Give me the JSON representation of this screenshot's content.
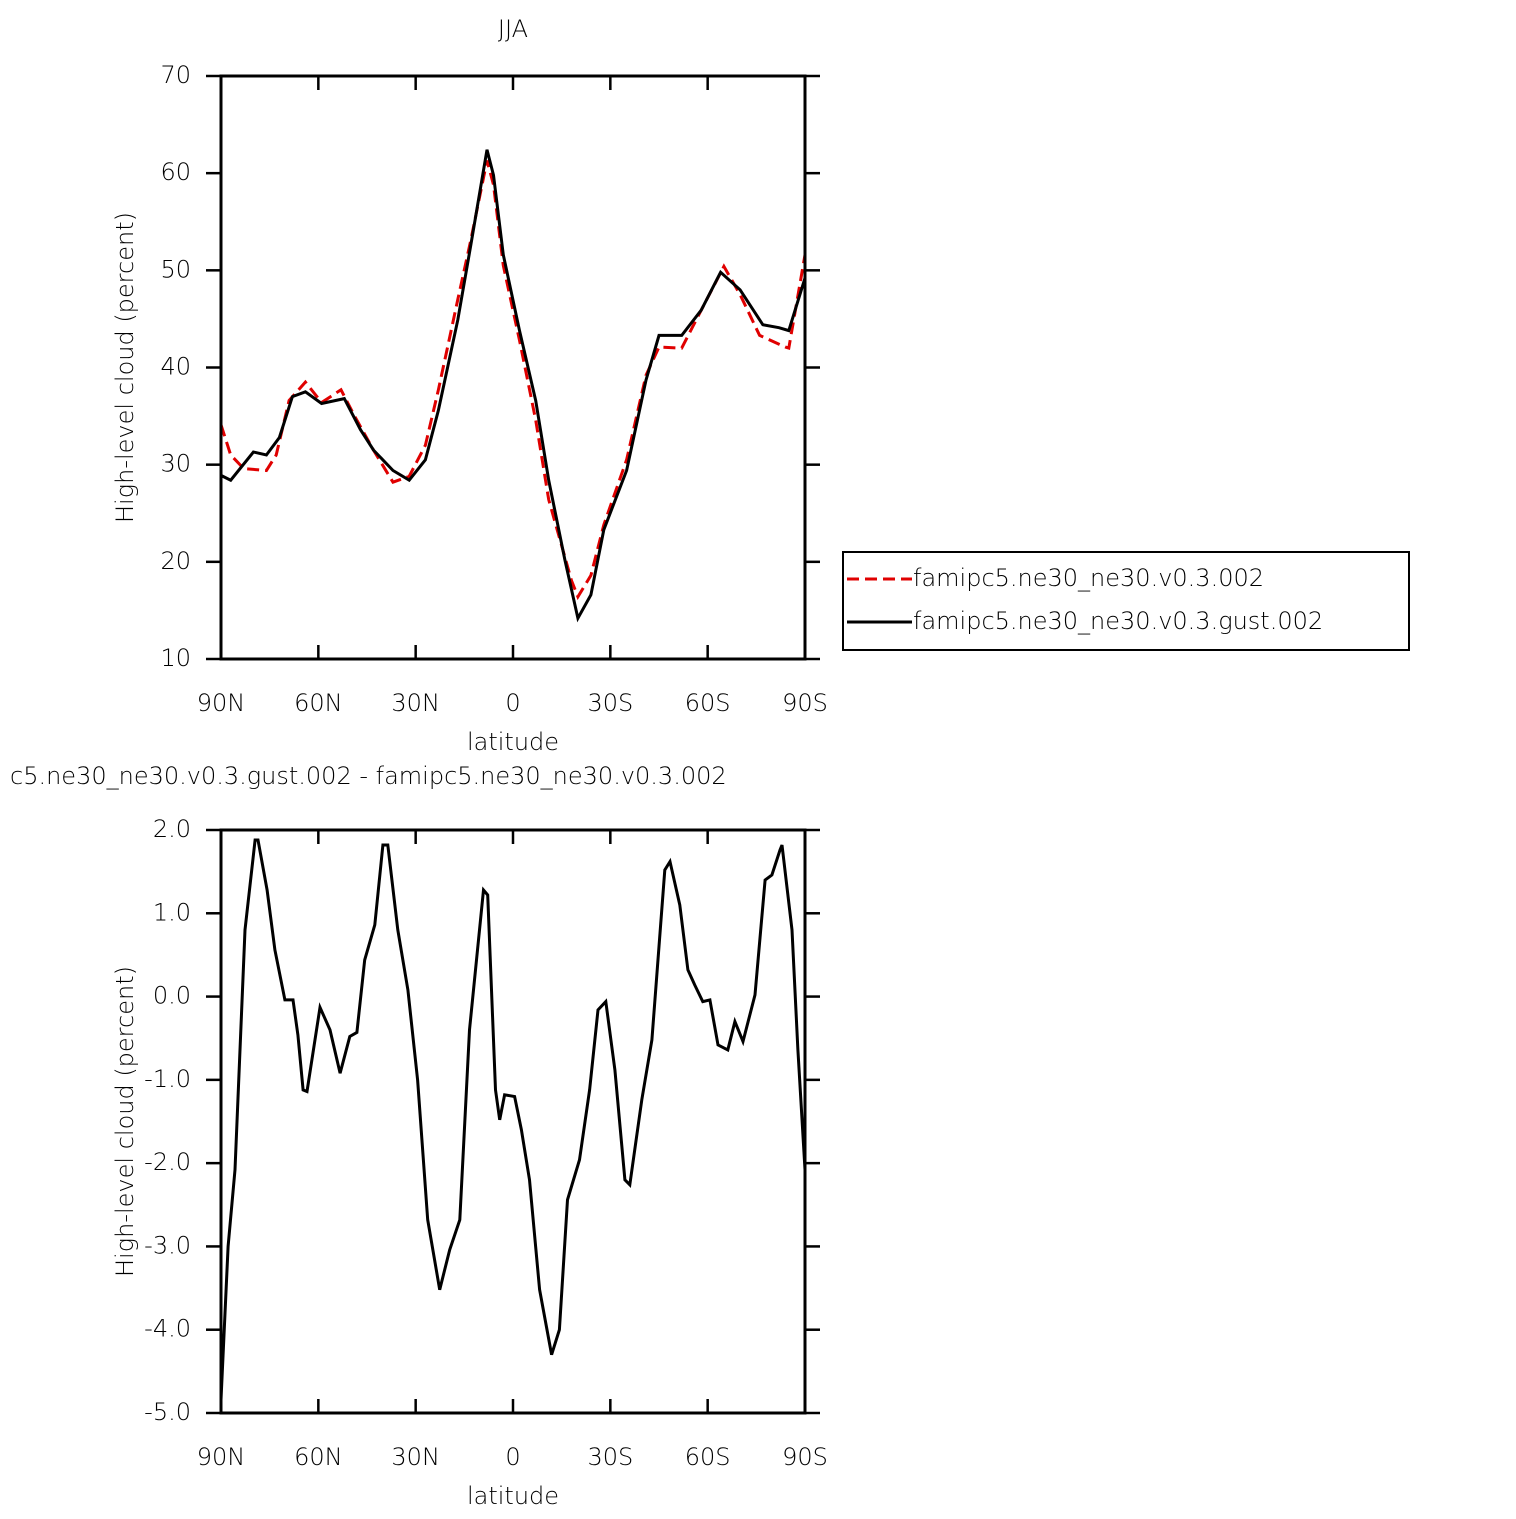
{
  "chart_data": [
    {
      "type": "line",
      "title": "JJA",
      "x_label": "latitude",
      "y_label": "High-level cloud (percent)",
      "xlim": [
        90,
        -90
      ],
      "xticks": [
        {
          "value": 90,
          "label": "90N"
        },
        {
          "value": 60,
          "label": "60N"
        },
        {
          "value": 30,
          "label": "30N"
        },
        0,
        {
          "value": -30,
          "label": "30S"
        },
        {
          "value": -60,
          "label": "60S"
        },
        {
          "value": -90,
          "label": "90S"
        }
      ],
      "ylim": [
        10,
        70
      ],
      "yticks": [
        10,
        20,
        30,
        40,
        50,
        60,
        70
      ],
      "legend": "right",
      "series": [
        {
          "name": "famipc5.ne30_ne30.v0.3.002",
          "color": "#e00000",
          "line_style": "dashed",
          "x": [
            90,
            87,
            83,
            76,
            73,
            69,
            64,
            59,
            53,
            49,
            43,
            37,
            32,
            27,
            23,
            17,
            13,
            8,
            6,
            3,
            -2,
            -7,
            -11,
            -18,
            -20,
            -24,
            -28,
            -35,
            -41,
            -45,
            -52,
            -58,
            -65,
            -70,
            -76,
            -84,
            -85,
            -90
          ],
          "values": [
            34.1,
            31,
            29.6,
            29.4,
            31,
            36.6,
            38.5,
            36.4,
            37.7,
            35.1,
            31.5,
            28.2,
            28.8,
            32,
            37.7,
            47,
            53.1,
            61.3,
            58.8,
            50.5,
            42.8,
            34.6,
            26.4,
            18.1,
            16.4,
            18.6,
            23.8,
            30.5,
            39.2,
            42.1,
            42,
            45.9,
            50.4,
            47.5,
            43.3,
            42.1,
            42,
            51.6
          ]
        },
        {
          "name": "famipc5.ne30_ne30.v0.3.gust.002",
          "color": "#000000",
          "line_style": "solid",
          "x": [
            90,
            87,
            80,
            76,
            72,
            68,
            64,
            59,
            52,
            47,
            43,
            37,
            32,
            27,
            23,
            17,
            13,
            8,
            6,
            3,
            -2,
            -7,
            -11,
            -16,
            -20,
            -24,
            -28,
            -35,
            -41,
            -45,
            -52,
            -58,
            -64,
            -70,
            -77,
            -82,
            -85,
            -90
          ],
          "values": [
            28.9,
            28.4,
            31.3,
            31,
            32.8,
            37,
            37.5,
            36.3,
            36.8,
            33.6,
            31.5,
            29.4,
            28.4,
            30.5,
            35.6,
            44.9,
            52.6,
            62.4,
            59.8,
            51.6,
            43.8,
            36.6,
            28.4,
            20.2,
            14.2,
            16.6,
            23.3,
            29.4,
            38.7,
            43.3,
            43.3,
            45.9,
            49.8,
            48,
            44.4,
            44.1,
            43.8,
            49.2
          ]
        }
      ]
    },
    {
      "type": "line",
      "title": "c5.ne30_ne30.v0.3.gust.002 - famipc5.ne30_ne30.v0.3.002",
      "x_label": "latitude",
      "y_label": "High-level cloud (percent)",
      "xlim": [
        90,
        -90
      ],
      "xticks": [
        {
          "value": 90,
          "label": "90N"
        },
        {
          "value": 60,
          "label": "60N"
        },
        {
          "value": 30,
          "label": "30N"
        },
        0,
        {
          "value": -30,
          "label": "30S"
        },
        {
          "value": -60,
          "label": "60S"
        },
        {
          "value": -90,
          "label": "90S"
        }
      ],
      "ylim": [
        -5,
        2
      ],
      "yticks": [
        {
          "value": -5,
          "label": "-5.0"
        },
        {
          "value": -4,
          "label": "-4.0"
        },
        {
          "value": -3,
          "label": "-3.0"
        },
        {
          "value": -2,
          "label": "-2.0"
        },
        {
          "value": -1,
          "label": "-1.0"
        },
        {
          "value": 0,
          "label": "0.0"
        },
        {
          "value": 1,
          "label": "1.0"
        },
        {
          "value": 2,
          "label": "2.0"
        }
      ],
      "series": [
        {
          "color": "#000000",
          "line_style": "solid",
          "x": [
            90,
            87.8,
            85.7,
            82.6,
            79.5,
            78.6,
            75.8,
            73.4,
            70.3,
            67.8,
            66.3,
            64.7,
            63.5,
            59.5,
            56.4,
            53.3,
            50.3,
            48.1,
            45.7,
            42.6,
            40.1,
            38.6,
            35.5,
            32.4,
            29.4,
            26.3,
            22.6,
            19.5,
            16.4,
            13.4,
            9.1,
            7.8,
            5.4,
            4.1,
            2.6,
            -0.5,
            -2.6,
            -5.1,
            -8.2,
            -11.9,
            -14.3,
            -16.8,
            -20.5,
            -23.6,
            -26.2,
            -28.6,
            -31.4,
            -34.5,
            -36,
            -39.7,
            -42.8,
            -46.8,
            -48.4,
            -51.4,
            -53.9,
            -56,
            -58.5,
            -60.7,
            -63.2,
            -66.2,
            -68.4,
            -70.9,
            -74.6,
            -77.7,
            -79.8,
            -82.3,
            -82.9,
            -86,
            -87.8,
            -90
          ],
          "values": [
            -4.84,
            -3.0,
            -2.08,
            0.8,
            1.88,
            1.88,
            1.28,
            0.56,
            -0.04,
            -0.04,
            -0.46,
            -1.12,
            -1.14,
            -0.13,
            -0.4,
            -0.92,
            -0.48,
            -0.43,
            0.44,
            0.86,
            1.82,
            1.82,
            0.8,
            0.08,
            -1.0,
            -2.68,
            -3.52,
            -3.04,
            -2.68,
            -0.4,
            1.28,
            1.22,
            -1.12,
            -1.48,
            -1.18,
            -1.2,
            -1.6,
            -2.2,
            -3.52,
            -4.3,
            -4.0,
            -2.44,
            -1.96,
            -1.12,
            -0.16,
            -0.06,
            -0.88,
            -2.2,
            -2.26,
            -1.24,
            -0.52,
            1.52,
            1.62,
            1.1,
            0.32,
            0.14,
            -0.06,
            -0.04,
            -0.58,
            -0.64,
            -0.3,
            -0.54,
            0.02,
            1.4,
            1.46,
            1.76,
            1.82,
            0.8,
            -0.64,
            -2.08
          ]
        }
      ]
    }
  ]
}
